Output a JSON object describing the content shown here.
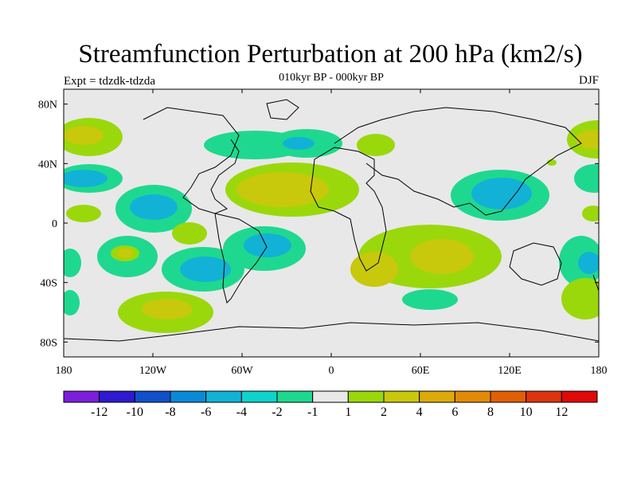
{
  "title": "Streamfunction Perturbation at 200 hPa (km2/s)",
  "subtitle": "010kyr BP - 000kyr BP",
  "left_label": "Expt = tdzdk-tdzda",
  "right_label": "DJF",
  "x_ticks": [
    "180",
    "120W",
    "60W",
    "0",
    "60E",
    "120E",
    "180"
  ],
  "y_ticks": [
    "80N",
    "40N",
    "0",
    "40S",
    "80S"
  ],
  "colorbar": {
    "colors": [
      "#7b1fdb",
      "#2f1ad0",
      "#1150c8",
      "#0a8ad6",
      "#12b2d6",
      "#10d2cc",
      "#1fd88f",
      "#e8e8e8",
      "#9ad80c",
      "#c8c80c",
      "#dcaa0a",
      "#e28a08",
      "#e06008",
      "#dc3410",
      "#e00a0a"
    ],
    "labels": [
      "-12",
      "-10",
      "-8",
      "-6",
      "-4",
      "-2",
      "-1",
      "1",
      "2",
      "4",
      "6",
      "8",
      "10",
      "12"
    ]
  },
  "colors": {
    "ocean_background": "#e8e8e8",
    "coast": "#000000"
  }
}
